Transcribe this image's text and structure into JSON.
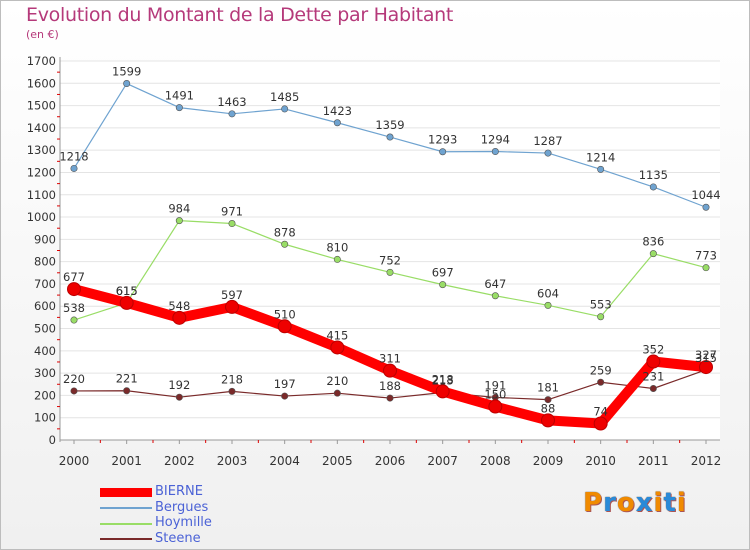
{
  "title": "Evolution du Montant de la Dette par Habitant",
  "subtitle": "(en €)",
  "chart_data": {
    "type": "line",
    "x": [
      "2000",
      "2001",
      "2002",
      "2003",
      "2004",
      "2005",
      "2006",
      "2007",
      "2008",
      "2009",
      "2010",
      "2011",
      "2012"
    ],
    "ylim": [
      0,
      1700
    ],
    "yticks": [
      0,
      100,
      200,
      300,
      400,
      500,
      600,
      700,
      800,
      900,
      1000,
      1100,
      1200,
      1300,
      1400,
      1500,
      1600,
      1700
    ],
    "grid": true,
    "legend_position": "bottom-left",
    "series": [
      {
        "name": "BIERNE",
        "color": "#ff0000",
        "values": [
          677,
          615,
          548,
          597,
          510,
          415,
          311,
          218,
          150,
          88,
          74,
          352,
          327
        ]
      },
      {
        "name": "Bergues",
        "color": "#6fa3d0",
        "values": [
          1218,
          1599,
          1491,
          1463,
          1485,
          1423,
          1359,
          1293,
          1294,
          1287,
          1214,
          1135,
          1044
        ]
      },
      {
        "name": "Hoymille",
        "color": "#99dd66",
        "values": [
          538,
          615,
          984,
          971,
          878,
          810,
          752,
          697,
          647,
          604,
          553,
          836,
          773
        ]
      },
      {
        "name": "Steene",
        "color": "#7a2a2a",
        "values": [
          220,
          221,
          192,
          218,
          197,
          210,
          188,
          213,
          191,
          181,
          259,
          231,
          315
        ]
      }
    ]
  },
  "logo": {
    "text": "Proxiti",
    "colors": [
      "#f08a00",
      "#2a8ad8",
      "#f08a00",
      "#2a8ad8",
      "#f08a00",
      "#2a8ad8",
      "#f08a00"
    ]
  }
}
